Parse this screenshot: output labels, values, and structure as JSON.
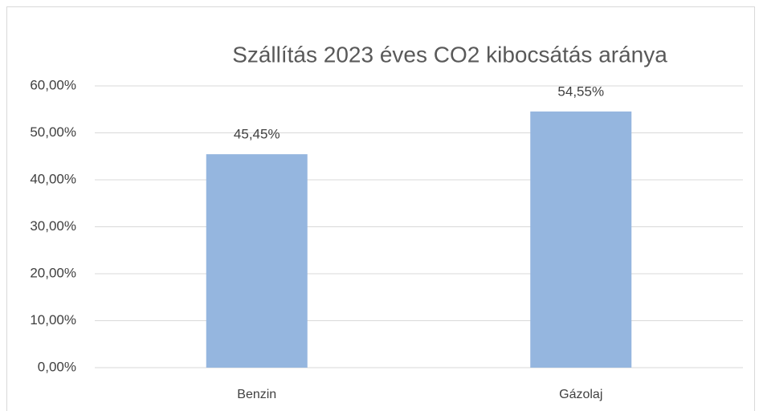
{
  "chart_data": {
    "type": "bar",
    "title": "Szállítás 2023 éves CO2 kibocsátás aránya",
    "categories": [
      "Benzin",
      "Gázolaj"
    ],
    "values": [
      45.45,
      54.55
    ],
    "value_labels": [
      "45,45%",
      "54,55%"
    ],
    "color": "#95b6df",
    "ylim": [
      0,
      60
    ],
    "yticks": [
      {
        "value": 0,
        "label": "0,00%"
      },
      {
        "value": 10,
        "label": "10,00%"
      },
      {
        "value": 20,
        "label": "20,00%"
      },
      {
        "value": 30,
        "label": "30,00%"
      },
      {
        "value": 40,
        "label": "40,00%"
      },
      {
        "value": 50,
        "label": "50,00%"
      },
      {
        "value": 60,
        "label": "60,00%"
      }
    ],
    "grid": true
  }
}
